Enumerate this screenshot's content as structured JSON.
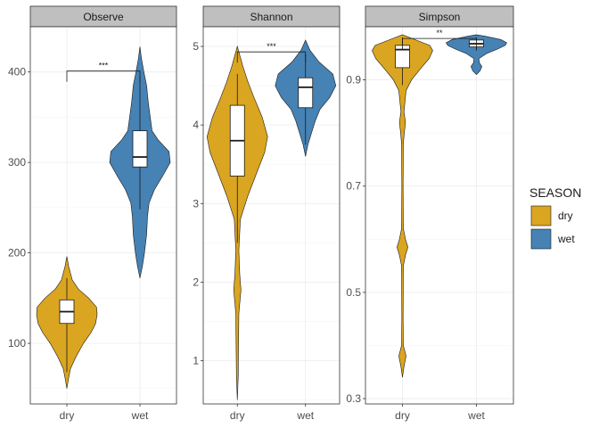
{
  "chart_data": {
    "type": "violin",
    "x_axis_label": "",
    "y_axis_label": "",
    "legend": {
      "title": "SEASON",
      "placement": "right",
      "entries": [
        {
          "label": "dry",
          "color": "#DAA520"
        },
        {
          "label": "wet",
          "color": "#4682B4"
        }
      ]
    },
    "categories": [
      "dry",
      "wet"
    ],
    "panels": [
      {
        "name": "Observe",
        "ylim": [
          33,
          450
        ],
        "yticks": [
          100,
          200,
          300,
          400
        ],
        "grid": true,
        "groups": [
          {
            "label": "dry",
            "min": 50,
            "max": 196,
            "q1": 122,
            "median": 135,
            "q3": 148,
            "whisker_low": 68,
            "whisker_high": 172,
            "density": [
              [
                50,
                0
              ],
              [
                60,
                0.05
              ],
              [
                72,
                0.12
              ],
              [
                85,
                0.3
              ],
              [
                100,
                0.55
              ],
              [
                112,
                0.8
              ],
              [
                122,
                0.95
              ],
              [
                132,
                1.0
              ],
              [
                140,
                0.98
              ],
              [
                150,
                0.72
              ],
              [
                160,
                0.38
              ],
              [
                170,
                0.18
              ],
              [
                185,
                0.06
              ],
              [
                196,
                0
              ]
            ]
          },
          {
            "label": "wet",
            "min": 172,
            "max": 428,
            "q1": 295,
            "median": 306,
            "q3": 335,
            "whisker_low": 248,
            "whisker_high": 395,
            "density": [
              [
                172,
                0
              ],
              [
                185,
                0.08
              ],
              [
                200,
                0.15
              ],
              [
                220,
                0.22
              ],
              [
                240,
                0.25
              ],
              [
                255,
                0.3
              ],
              [
                270,
                0.48
              ],
              [
                285,
                0.75
              ],
              [
                300,
                1.0
              ],
              [
                312,
                0.96
              ],
              [
                325,
                0.6
              ],
              [
                335,
                0.4
              ],
              [
                350,
                0.34
              ],
              [
                365,
                0.28
              ],
              [
                385,
                0.22
              ],
              [
                400,
                0.13
              ],
              [
                415,
                0.05
              ],
              [
                428,
                0
              ]
            ]
          }
        ],
        "comparison": {
          "label": "***",
          "y": 401
        }
      },
      {
        "name": "Shannon",
        "ylim": [
          0.45,
          5.25
        ],
        "yticks": [
          1,
          2,
          3,
          4,
          5
        ],
        "grid": true,
        "groups": [
          {
            "label": "dry",
            "min": 0.5,
            "max": 5.0,
            "q1": 3.35,
            "median": 3.8,
            "q3": 4.25,
            "whisker_low": 2.5,
            "whisker_high": 4.65,
            "density": [
              [
                0.5,
                0
              ],
              [
                0.8,
                0.03
              ],
              [
                1.2,
                0.04
              ],
              [
                1.6,
                0.05
              ],
              [
                1.9,
                0.12
              ],
              [
                2.1,
                0.08
              ],
              [
                2.4,
                0.05
              ],
              [
                2.8,
                0.1
              ],
              [
                3.1,
                0.35
              ],
              [
                3.4,
                0.65
              ],
              [
                3.65,
                0.9
              ],
              [
                3.85,
                1.0
              ],
              [
                4.1,
                0.82
              ],
              [
                4.35,
                0.55
              ],
              [
                4.55,
                0.35
              ],
              [
                4.75,
                0.18
              ],
              [
                5.0,
                0
              ]
            ]
          },
          {
            "label": "wet",
            "min": 3.6,
            "max": 5.08,
            "q1": 4.22,
            "median": 4.48,
            "q3": 4.6,
            "whisker_low": 3.75,
            "whisker_high": 4.9,
            "density": [
              [
                3.6,
                0
              ],
              [
                3.75,
                0.08
              ],
              [
                3.9,
                0.2
              ],
              [
                4.05,
                0.32
              ],
              [
                4.2,
                0.48
              ],
              [
                4.35,
                0.8
              ],
              [
                4.5,
                1.0
              ],
              [
                4.65,
                0.9
              ],
              [
                4.8,
                0.45
              ],
              [
                4.95,
                0.15
              ],
              [
                5.08,
                0
              ]
            ]
          }
        ],
        "comparison": {
          "label": "***",
          "y": 4.93
        }
      },
      {
        "name": "Simpson",
        "ylim": [
          0.29,
          1.0
        ],
        "yticks": [
          0.3,
          0.5,
          0.7,
          0.9
        ],
        "grid": true,
        "groups": [
          {
            "label": "dry",
            "min": 0.34,
            "max": 0.985,
            "q1": 0.923,
            "median": 0.957,
            "q3": 0.965,
            "whisker_low": 0.89,
            "whisker_high": 0.98,
            "density": [
              [
                0.34,
                0
              ],
              [
                0.36,
                0.05
              ],
              [
                0.38,
                0.12
              ],
              [
                0.4,
                0.03
              ],
              [
                0.45,
                0.02
              ],
              [
                0.55,
                0.03
              ],
              [
                0.57,
                0.1
              ],
              [
                0.585,
                0.18
              ],
              [
                0.6,
                0.1
              ],
              [
                0.62,
                0.03
              ],
              [
                0.7,
                0.02
              ],
              [
                0.78,
                0.03
              ],
              [
                0.8,
                0.06
              ],
              [
                0.82,
                0.1
              ],
              [
                0.84,
                0.05
              ],
              [
                0.88,
                0.12
              ],
              [
                0.9,
                0.3
              ],
              [
                0.92,
                0.58
              ],
              [
                0.94,
                0.88
              ],
              [
                0.955,
                1.0
              ],
              [
                0.965,
                0.9
              ],
              [
                0.975,
                0.45
              ],
              [
                0.985,
                0
              ]
            ]
          },
          {
            "label": "wet",
            "min": 0.91,
            "max": 0.985,
            "q1": 0.962,
            "median": 0.968,
            "q3": 0.975,
            "whisker_low": 0.955,
            "whisker_high": 0.98,
            "density": [
              [
                0.91,
                0
              ],
              [
                0.917,
                0.12
              ],
              [
                0.925,
                0.18
              ],
              [
                0.932,
                0.1
              ],
              [
                0.94,
                0.08
              ],
              [
                0.95,
                0.35
              ],
              [
                0.958,
                0.7
              ],
              [
                0.965,
                0.95
              ],
              [
                0.97,
                1.0
              ],
              [
                0.976,
                0.8
              ],
              [
                0.982,
                0.3
              ],
              [
                0.985,
                0
              ]
            ]
          }
        ],
        "comparison": {
          "label": "**",
          "y": 0.978
        }
      }
    ]
  }
}
